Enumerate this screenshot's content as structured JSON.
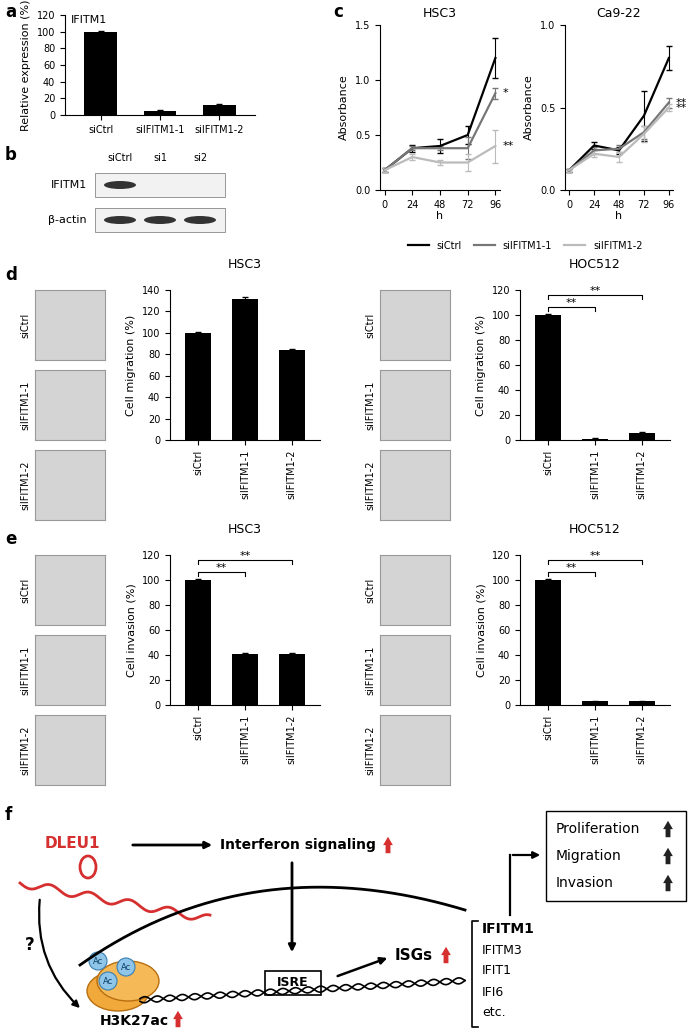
{
  "panel_labels": [
    "a",
    "b",
    "c",
    "d",
    "e",
    "f"
  ],
  "chart_data": [
    {
      "type": "bar",
      "title": "IFITM1",
      "ylabel": "Relative expression (%)",
      "categories": [
        "siCtrl",
        "siIFITM1-1",
        "siIFITM1-2"
      ],
      "values": [
        100,
        5,
        12
      ],
      "errors": [
        1,
        0.5,
        1
      ],
      "color": "#000000",
      "ylim": [
        0,
        120
      ],
      "yticks": [
        0,
        20,
        40,
        60,
        80,
        100,
        120
      ]
    },
    {
      "type": "line",
      "title": "HSC3",
      "xlabel": "h",
      "ylabel": "Absorbance",
      "x": [
        0,
        24,
        48,
        72,
        96
      ],
      "xlim": [
        -4,
        100
      ],
      "xticks": [
        0,
        24,
        48,
        72,
        96
      ],
      "ylim": [
        0,
        1.5
      ],
      "yticks": [
        {
          "value": 0,
          "label": "0.0"
        },
        {
          "value": 0.5,
          "label": "0.5"
        },
        {
          "value": 1,
          "label": "1.0"
        },
        {
          "value": 1.5,
          "label": "1.5"
        }
      ],
      "legend": "bottom",
      "series": [
        {
          "name": "siCtrl",
          "color": "#000000",
          "values": [
            0.18,
            0.38,
            0.4,
            0.5,
            1.2
          ],
          "errors": [
            0.02,
            0.03,
            0.06,
            0.08,
            0.18
          ]
        },
        {
          "name": "siIFITM1-1",
          "color": "#777777",
          "values": [
            0.18,
            0.38,
            0.38,
            0.38,
            0.88
          ],
          "errors": [
            0.02,
            0.02,
            0.02,
            0.1,
            0.05
          ],
          "significance": "*"
        },
        {
          "name": "siIFITM1-2",
          "color": "#bbbbbb",
          "values": [
            0.18,
            0.3,
            0.25,
            0.25,
            0.4
          ],
          "errors": [
            0.02,
            0.03,
            0.02,
            0.08,
            0.15
          ],
          "significance": "**"
        }
      ]
    },
    {
      "type": "line",
      "title": "Ca9-22",
      "xlabel": "h",
      "ylabel": "Absorbance",
      "x": [
        0,
        24,
        48,
        72,
        96
      ],
      "xlim": [
        -4,
        100
      ],
      "xticks": [
        0,
        24,
        48,
        72,
        96
      ],
      "ylim": [
        0,
        1.0
      ],
      "yticks": [
        {
          "value": 0,
          "label": "0.0"
        },
        {
          "value": 0.5,
          "label": "0.5"
        },
        {
          "value": 1,
          "label": "1.0"
        }
      ],
      "series": [
        {
          "color": "#000000",
          "values": [
            0.12,
            0.27,
            0.24,
            0.45,
            0.8
          ],
          "errors": [
            0.01,
            0.02,
            0.02,
            0.15,
            0.07
          ]
        },
        {
          "color": "#777777",
          "values": [
            0.12,
            0.24,
            0.25,
            0.35,
            0.53
          ],
          "errors": [
            0.01,
            0.02,
            0.02,
            0.04,
            0.03
          ],
          "significance": "**"
        },
        {
          "color": "#bbbbbb",
          "values": [
            0.12,
            0.22,
            0.2,
            0.34,
            0.5
          ],
          "errors": [
            0.01,
            0.02,
            0.03,
            0.05,
            0.02
          ],
          "significance": "**"
        }
      ]
    },
    {
      "type": "bar",
      "title": "HSC3",
      "ylabel": "Cell migration (%)",
      "categories": [
        "siCtrl",
        "siIFITM1-1",
        "siIFITM1-2"
      ],
      "values": [
        100,
        132,
        84
      ],
      "errors": [
        1,
        1.5,
        1
      ],
      "color": "#000000",
      "ylim": [
        0,
        140
      ],
      "yticks": [
        0,
        20,
        40,
        60,
        80,
        100,
        120,
        140
      ]
    },
    {
      "type": "bar",
      "title": "HOC512",
      "ylabel": "Cell migration (%)",
      "categories": [
        "siCtrl",
        "siIFITM1-1",
        "siIFITM1-2"
      ],
      "values": [
        100,
        1,
        6
      ],
      "errors": [
        1,
        0.3,
        0.5
      ],
      "color": "#000000",
      "ylim": [
        0,
        120
      ],
      "yticks": [
        0,
        20,
        40,
        60,
        80,
        100,
        120
      ],
      "significance": [
        {
          "from": "siCtrl",
          "to": "siIFITM1-1",
          "label": "**"
        },
        {
          "from": "siCtrl",
          "to": "siIFITM1-2",
          "label": "**"
        }
      ]
    },
    {
      "type": "bar",
      "title": "HSC3",
      "ylabel": "Cell invasion (%)",
      "categories": [
        "siCtrl",
        "siIFITM1-1",
        "siIFITM1-2"
      ],
      "values": [
        100,
        41,
        41
      ],
      "errors": [
        1,
        0.5,
        0.5
      ],
      "color": "#000000",
      "ylim": [
        0,
        120
      ],
      "yticks": [
        0,
        20,
        40,
        60,
        80,
        100,
        120
      ],
      "significance": [
        {
          "from": "siCtrl",
          "to": "siIFITM1-1",
          "label": "**"
        },
        {
          "from": "siCtrl",
          "to": "siIFITM1-2",
          "label": "**"
        }
      ]
    },
    {
      "type": "bar",
      "title": "HOC512",
      "ylabel": "Cell invasion (%)",
      "categories": [
        "siCtrl",
        "siIFITM1-1",
        "siIFITM1-2"
      ],
      "values": [
        100,
        3,
        3
      ],
      "errors": [
        1,
        0.3,
        0.3
      ],
      "color": "#000000",
      "ylim": [
        0,
        120
      ],
      "yticks": [
        0,
        20,
        40,
        60,
        80,
        100,
        120
      ],
      "significance": [
        {
          "from": "siCtrl",
          "to": "siIFITM1-1",
          "label": "**"
        },
        {
          "from": "siCtrl",
          "to": "siIFITM1-2",
          "label": "**"
        }
      ]
    }
  ],
  "blot": {
    "lanes": [
      "siCtrl",
      "si1",
      "si2"
    ],
    "rows": [
      {
        "label": "IFITM1",
        "bands": [
          true,
          false,
          false
        ]
      },
      {
        "label": "β-actin",
        "bands": [
          true,
          true,
          true
        ]
      }
    ]
  },
  "diagram": {
    "source": "DLEU1",
    "unknown_link": "?",
    "pathway": {
      "label": "Interferon signaling",
      "increased": true
    },
    "histone_mark": {
      "label": "H3K27ac",
      "increased": true
    },
    "acetyl": "Ac",
    "element": "ISRE",
    "targets": {
      "label": "ISGs",
      "increased": true
    },
    "genes": [
      "IFITM1",
      "IFITM3",
      "IFIT1",
      "IFI6",
      "etc."
    ],
    "highlight_gene": "IFITM1",
    "phenotypes": [
      {
        "label": "Proliferation",
        "increased": true
      },
      {
        "label": "Migration",
        "increased": true
      },
      {
        "label": "Invasion",
        "increased": true
      }
    ]
  }
}
